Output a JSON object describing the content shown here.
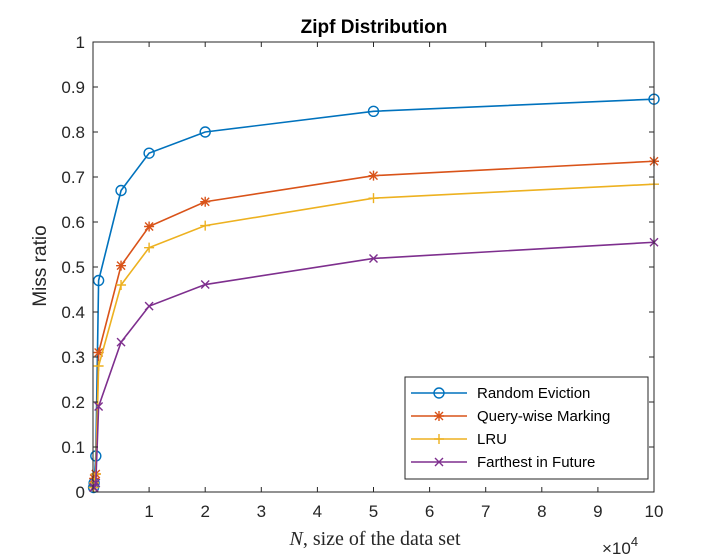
{
  "chart_data": {
    "type": "line",
    "title": "Zipf Distribution",
    "ylabel": "Miss ratio",
    "xlabel_var": "N",
    "xlabel_rest": ", size of the data set",
    "x_exponent_base": "×10",
    "x_exponent_power": "4",
    "xlim": [
      0,
      100000
    ],
    "ylim": [
      0,
      1
    ],
    "x_ticks": [
      10000,
      20000,
      30000,
      40000,
      50000,
      60000,
      70000,
      80000,
      90000,
      100000
    ],
    "x_tick_labels": [
      "1",
      "2",
      "3",
      "4",
      "5",
      "6",
      "7",
      "8",
      "9",
      "10"
    ],
    "y_ticks": [
      0,
      0.1,
      0.2,
      0.3,
      0.4,
      0.5,
      0.6,
      0.7,
      0.8,
      0.9,
      1
    ],
    "y_tick_labels": [
      "0",
      "0.1",
      "0.2",
      "0.3",
      "0.4",
      "0.5",
      "0.6",
      "0.7",
      "0.8",
      "0.9",
      "1"
    ],
    "x": [
      100,
      200,
      500,
      1000,
      5000,
      10000,
      20000,
      50000,
      100000
    ],
    "legend_position": "bottom-right",
    "series": [
      {
        "name": "Random Eviction",
        "color": "#0072BD",
        "marker": "circle",
        "values": [
          0.01,
          0.02,
          0.08,
          0.47,
          0.67,
          0.753,
          0.8,
          0.846,
          0.873
        ]
      },
      {
        "name": "Query-wise Marking",
        "color": "#D95319",
        "marker": "asterisk",
        "values": [
          0.01,
          0.03,
          0.04,
          0.31,
          0.503,
          0.59,
          0.645,
          0.703,
          0.735
        ]
      },
      {
        "name": "LRU",
        "color": "#EDB120",
        "marker": "plus",
        "values": [
          0.01,
          0.02,
          0.04,
          0.28,
          0.46,
          0.543,
          0.592,
          0.653,
          0.684
        ]
      },
      {
        "name": "Farthest in Future",
        "color": "#7E2F8E",
        "marker": "x",
        "values": [
          0.01,
          0.01,
          0.02,
          0.19,
          0.333,
          0.413,
          0.461,
          0.519,
          0.555
        ]
      }
    ]
  }
}
